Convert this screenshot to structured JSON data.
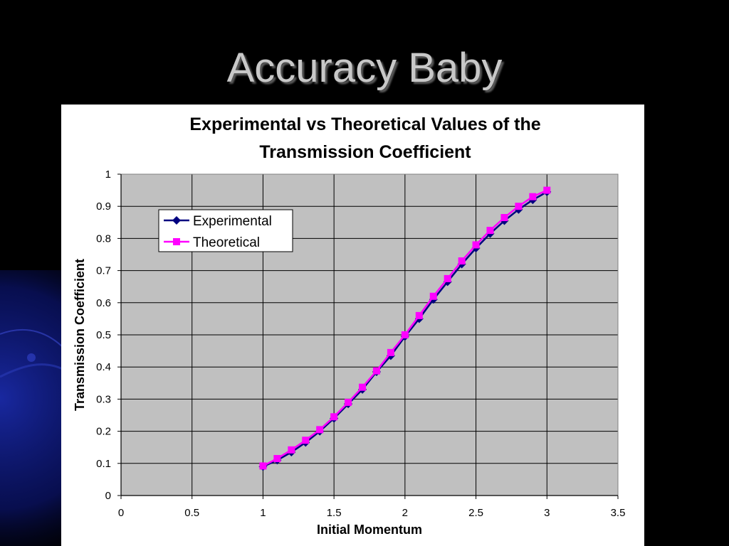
{
  "slide": {
    "title": "Accuracy Baby",
    "background_color": "#000000",
    "title_color": "#c8c8c8"
  },
  "chart_data": {
    "type": "line",
    "title_lines": [
      "Experimental vs Theoretical Values of the",
      "Transmission Coefficient"
    ],
    "xlabel": "Initial Momentum",
    "ylabel": "Transmission Coefficient",
    "xlim": [
      0,
      3.5
    ],
    "ylim": [
      0,
      1
    ],
    "x_ticks": [
      "0",
      "0.5",
      "1",
      "1.5",
      "2",
      "2.5",
      "3",
      "3.5"
    ],
    "y_ticks": [
      "0",
      "0.1",
      "0.2",
      "0.3",
      "0.4",
      "0.5",
      "0.6",
      "0.7",
      "0.8",
      "0.9",
      "1"
    ],
    "grid": true,
    "plot_background": "#c0c0c0",
    "legend_position": "top-left",
    "series": [
      {
        "name": "Experimental",
        "color": "#000080",
        "marker": "diamond",
        "x": [
          1.0,
          1.1,
          1.2,
          1.3,
          1.4,
          1.5,
          1.6,
          1.7,
          1.8,
          1.9,
          2.0,
          2.1,
          2.2,
          2.3,
          2.4,
          2.5,
          2.6,
          2.7,
          2.8,
          2.9,
          3.0
        ],
        "y": [
          0.09,
          0.11,
          0.135,
          0.165,
          0.2,
          0.24,
          0.285,
          0.33,
          0.385,
          0.435,
          0.495,
          0.55,
          0.61,
          0.665,
          0.72,
          0.77,
          0.815,
          0.855,
          0.89,
          0.92,
          0.945
        ]
      },
      {
        "name": "Theoretical",
        "color": "#ff00ff",
        "marker": "square",
        "x": [
          1.0,
          1.1,
          1.2,
          1.3,
          1.4,
          1.5,
          1.6,
          1.7,
          1.8,
          1.9,
          2.0,
          2.1,
          2.2,
          2.3,
          2.4,
          2.5,
          2.6,
          2.7,
          2.8,
          2.9,
          3.0
        ],
        "y": [
          0.092,
          0.115,
          0.142,
          0.172,
          0.205,
          0.245,
          0.29,
          0.337,
          0.388,
          0.445,
          0.5,
          0.56,
          0.62,
          0.675,
          0.73,
          0.78,
          0.825,
          0.865,
          0.9,
          0.93,
          0.95
        ]
      }
    ]
  }
}
